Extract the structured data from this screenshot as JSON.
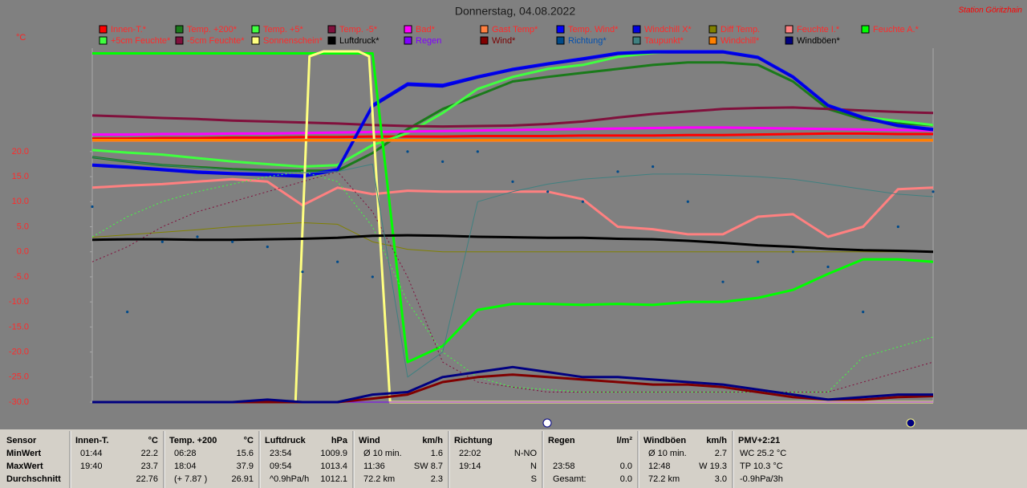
{
  "chart_data": {
    "type": "line",
    "title": "Donnerstag, 04.08.2022",
    "station": "Station Göritzhain",
    "y_unit": "°C",
    "legend_text_color": "#ff2a2a",
    "xlim": [
      0,
      24
    ],
    "x": [
      0,
      1,
      2,
      3,
      4,
      5,
      6,
      7,
      8,
      9,
      10,
      11,
      12,
      13,
      14,
      15,
      16,
      17,
      18,
      19,
      20,
      21,
      22,
      23,
      24
    ],
    "ylim": [
      -30,
      40
    ],
    "yticks": [
      {
        "value": 20,
        "label": "20.0"
      },
      {
        "value": 15,
        "label": "15.0"
      },
      {
        "value": 10,
        "label": "10.0"
      },
      {
        "value": 5,
        "label": "5.0"
      },
      {
        "value": 0,
        "label": "0.0"
      },
      {
        "value": -5,
        "label": "-5.0"
      },
      {
        "value": -10,
        "label": "-10.0"
      },
      {
        "value": -15,
        "label": "-15.0"
      },
      {
        "value": -20,
        "label": "-20.0"
      },
      {
        "value": -25,
        "label": "-25.0"
      },
      {
        "value": -30,
        "label": "-30.0"
      }
    ],
    "series": [
      {
        "name": "Innen-T.*",
        "color": "#ff0000",
        "width": 3,
        "values": [
          22.6,
          22.6,
          22.7,
          22.7,
          22.8,
          22.8,
          22.9,
          22.9,
          23.0,
          23.0,
          23.0,
          23.1,
          23.1,
          23.1,
          23.2,
          23.2,
          23.2,
          23.3,
          23.3,
          23.4,
          23.5,
          23.6,
          23.6,
          23.5,
          23.5
        ]
      },
      {
        "name": "Temp. +200*",
        "color": "#1a7a1a",
        "width": 3,
        "values": [
          18.9,
          18,
          17.3,
          16.9,
          16.5,
          16.3,
          16.2,
          16.2,
          19.7,
          24.5,
          28.5,
          31.2,
          34,
          34.9,
          35.7,
          36.5,
          37.3,
          37.8,
          37.8,
          37.3,
          34,
          28.5,
          26.4,
          25.6,
          25.3
        ]
      },
      {
        "name": "Temp. +5*",
        "color": "#40ff40",
        "width": 3,
        "values": [
          20.3,
          19.8,
          19.4,
          18.7,
          18,
          17.5,
          17,
          17.3,
          21.3,
          23.7,
          27.7,
          32.5,
          34.9,
          36.5,
          37.3,
          38.9,
          39.7,
          40,
          40,
          38.9,
          34.9,
          29.3,
          26.9,
          26.1,
          25.3
        ]
      },
      {
        "name": "Temp. -5*",
        "color": "#80103c",
        "width": 3,
        "values": [
          27.2,
          27,
          26.7,
          26.5,
          26.2,
          26,
          25.8,
          25.6,
          25.3,
          25.1,
          25,
          25.1,
          25.2,
          25.5,
          26,
          26.8,
          27.5,
          28,
          28.5,
          28.7,
          28.8,
          28.5,
          28.2,
          27.9,
          27.7
        ]
      },
      {
        "name": "Bad*",
        "color": "#ff00ff",
        "width": 3,
        "values": [
          23.4,
          23.4,
          23.5,
          23.5,
          23.6,
          23.6,
          23.7,
          23.8,
          23.9,
          24,
          24.1,
          24.2,
          24.3,
          24.4,
          24.5,
          24.6,
          24.7,
          24.8,
          24.8,
          24.7,
          24.6,
          24.5,
          24.4,
          24.3,
          24.2
        ]
      },
      {
        "name": "Gast Temp*",
        "color": "#ff8040",
        "width": 3,
        "values": [
          22.2,
          22.2,
          22.2,
          22.2,
          22.2,
          22.2,
          22.2,
          22.2,
          22.2,
          22.2,
          22.2,
          22.2,
          22.2,
          22.2,
          22.2,
          22.2,
          22.2,
          22.2,
          22.2,
          22.2,
          22.2,
          22.2,
          22.2,
          22.2,
          22.2
        ]
      },
      {
        "name": "Temp. Wind*",
        "color": "#0000ff",
        "width": 3,
        "values": [
          17.4,
          17,
          16.5,
          16,
          15.7,
          15.5,
          15.2,
          16.5,
          29.3,
          33.6,
          33.3,
          35,
          36.5,
          37.6,
          38.6,
          39.7,
          40,
          40,
          40,
          38.9,
          35,
          29.3,
          26.9,
          25.3,
          24.5
        ]
      },
      {
        "name": "Windchill X*",
        "color": "#0000e0",
        "width": 3,
        "values": [
          17.2,
          16.8,
          16.3,
          15.8,
          15.5,
          15.3,
          15,
          16.3,
          29,
          33.3,
          33,
          34.8,
          36.3,
          37.4,
          38.4,
          39.5,
          39.8,
          39.8,
          39.8,
          38.7,
          34.8,
          29.1,
          26.7,
          25.1,
          24.3
        ]
      },
      {
        "name": "Diff Temp.",
        "color": "#808000",
        "width": 1,
        "values": [
          2.9,
          3.4,
          3.9,
          4.4,
          5,
          5.4,
          5.8,
          5.5,
          2,
          0.5,
          0,
          0,
          0,
          0,
          0,
          0,
          0,
          0,
          0,
          0,
          0,
          0,
          0,
          0,
          0
        ]
      },
      {
        "name": "Feuchte I.*",
        "color": "#ff8080",
        "width": 3,
        "values": [
          12.8,
          13.2,
          13.5,
          14,
          14.5,
          14,
          9.3,
          12.8,
          11.5,
          12.2,
          12,
          12,
          12,
          12,
          10.5,
          5,
          4.5,
          3.5,
          3.5,
          7,
          7.5,
          3,
          5,
          12.5,
          12.8
        ]
      },
      {
        "name": "Feuchte A.*",
        "color": "#00ff00",
        "width": 3,
        "values": [
          39.6,
          39.6,
          39.6,
          39.6,
          39.6,
          39.6,
          39.6,
          39.6,
          39.6,
          -22,
          -18.8,
          -11.6,
          -10.4,
          -10.4,
          -10.6,
          -10.4,
          -10.6,
          -10,
          -10,
          -9.2,
          -7.6,
          -4.4,
          -1.5,
          -1.5,
          -2
        ]
      },
      {
        "name": "+5cm Feuchte*",
        "color": "#40ff40",
        "width": 1,
        "dash": "dotted",
        "values": [
          3,
          7,
          10,
          12,
          13.5,
          15,
          16,
          14,
          5,
          -10,
          -20,
          -25,
          -27,
          -27.5,
          -28,
          -28,
          -28,
          -28,
          -28,
          -28,
          -28,
          -28,
          -21,
          -19,
          -17
        ]
      },
      {
        "name": "-5cm Feuchte*",
        "color": "#80103c",
        "width": 1,
        "dash": "dotted",
        "values": [
          -2,
          1,
          5,
          8,
          10,
          12,
          14,
          16,
          8,
          -5,
          -22,
          -26,
          -27,
          -28,
          -28,
          -28,
          -28,
          -28,
          -28,
          -28,
          -28,
          -28,
          -26,
          -24,
          -22
        ]
      },
      {
        "name": "Sonnenschein*",
        "color": "#ffff80",
        "width": 3,
        "x": [
          0,
          5.8,
          6.2,
          6.6,
          7.6,
          7.9,
          8.5,
          24
        ],
        "values": [
          -30,
          -30,
          39,
          40,
          40,
          39,
          -30,
          -30
        ]
      },
      {
        "name": "Luftdruck*",
        "color": "#000000",
        "width": 3,
        "label_color": "#000000",
        "values": [
          2.4,
          2.5,
          2.5,
          2.4,
          2.4,
          2.5,
          2.6,
          2.8,
          3.2,
          3.3,
          3.2,
          3,
          2.9,
          2.8,
          2.8,
          2.6,
          2.5,
          2.2,
          1.8,
          1.3,
          1,
          0.6,
          0.3,
          0.2,
          0
        ]
      },
      {
        "name": "Regen",
        "color": "#8000ff",
        "width": 1,
        "label_color": "#8000ff",
        "values": [
          -30,
          -30,
          -30,
          -30,
          -30,
          -30,
          -30,
          -30,
          -30,
          -30,
          -30,
          -30,
          -30,
          -30,
          -30,
          -30,
          -30,
          -30,
          -30,
          -30,
          -30,
          -30,
          -30,
          -30,
          -30
        ]
      },
      {
        "name": "Wind*",
        "color": "#800000",
        "width": 3,
        "label_color": "#7a0000",
        "values": [
          -30,
          -30,
          -30,
          -30,
          -30,
          -30,
          -30,
          -30,
          -29.3,
          -28.5,
          -26,
          -25,
          -24.5,
          -25,
          -25.5,
          -26,
          -26.5,
          -26.5,
          -27,
          -28,
          -29,
          -29.5,
          -29.5,
          -29,
          -28.8
        ]
      },
      {
        "name": "Richtung*",
        "color": "#004a8a",
        "style": "dots",
        "label_color": "#0050b0",
        "values": [
          9,
          -12,
          2,
          3,
          2,
          1,
          -4,
          -2,
          -5,
          20,
          18,
          20,
          14,
          12,
          10,
          16,
          17,
          10,
          -6,
          -2,
          0,
          -3,
          -12,
          5,
          12
        ]
      },
      {
        "name": "Taupunkt*",
        "color": "#408080",
        "width": 1,
        "values": [
          18.9,
          18,
          17.3,
          16.8,
          16.3,
          16,
          15.8,
          16,
          17.5,
          -25,
          -20,
          10,
          12,
          13.5,
          14.5,
          15,
          15.5,
          15.5,
          15.3,
          15,
          14.5,
          13.5,
          12.5,
          11.5,
          11
        ]
      },
      {
        "name": "Windchill*",
        "color": "#ff8000",
        "width": 3,
        "values": [
          22.3,
          22.3,
          22.3,
          22.3,
          22.3,
          22.3,
          22.3,
          22.3,
          22.3,
          22.3,
          22.3,
          22.3,
          22.3,
          22.3,
          22.3,
          22.3,
          22.3,
          22.3,
          22.3,
          22.3,
          22.3,
          22.3,
          22.3,
          22.3,
          22.3
        ]
      },
      {
        "name": "Windböen*",
        "color": "#000080",
        "width": 3,
        "label_color": "#000000",
        "values": [
          -30,
          -30,
          -30,
          -30,
          -30,
          -29.5,
          -30,
          -30,
          -28.5,
          -28,
          -25,
          -24,
          -23,
          -24,
          -25,
          -25,
          -25.5,
          -26,
          -26.5,
          -27.5,
          -28.5,
          -29.5,
          -29,
          -28.5,
          -28.5
        ]
      }
    ]
  },
  "stats": {
    "row_labels": [
      "Sensor",
      "MinWert",
      "MaxWert",
      "Durchschnitt"
    ],
    "columns": [
      {
        "name": "Innen-T.",
        "unit": "°C",
        "rows": [
          [
            "01:44",
            "22.2"
          ],
          [
            "19:40",
            "23.7"
          ],
          [
            null,
            "22.76"
          ]
        ]
      },
      {
        "name": "Temp. +200",
        "unit": "°C",
        "rows": [
          [
            "06:28",
            "15.6"
          ],
          [
            "18:04",
            "37.9"
          ],
          [
            "(+ 7.87 )",
            "26.91"
          ]
        ]
      },
      {
        "name": "Luftdruck",
        "unit": "hPa",
        "rows": [
          [
            "23:54",
            "1009.9"
          ],
          [
            "09:54",
            "1013.4"
          ],
          [
            "^0.9hPa/h",
            "1012.1"
          ]
        ]
      },
      {
        "name": "Wind",
        "unit": "km/h",
        "rows": [
          [
            "Ø 10 min.",
            "1.6"
          ],
          [
            "11:36",
            "SW 8.7"
          ],
          [
            "72.2 km",
            "2.3"
          ]
        ]
      },
      {
        "name": "Richtung",
        "rows": [
          [
            "22:02",
            "N-NO"
          ],
          [
            "19:14",
            "N"
          ],
          [
            null,
            "S"
          ]
        ]
      },
      {
        "name": "Regen",
        "unit": "l/m²",
        "rows": [
          [
            null,
            null
          ],
          [
            "23:58",
            "0.0"
          ],
          [
            "Gesamt:",
            "0.0"
          ]
        ]
      },
      {
        "name": "Windböen",
        "unit": "km/h",
        "rows": [
          [
            "Ø 10 min.",
            "2.7"
          ],
          [
            "12:48",
            "W 19.3"
          ],
          [
            "72.2 km",
            "3.0"
          ]
        ]
      },
      {
        "name": "PMV+2:21",
        "rows": [
          [
            "WC 25.2 °C"
          ],
          [
            "TP 10.3 °C"
          ],
          [
            "-0.9hPa/3h"
          ]
        ]
      }
    ]
  }
}
